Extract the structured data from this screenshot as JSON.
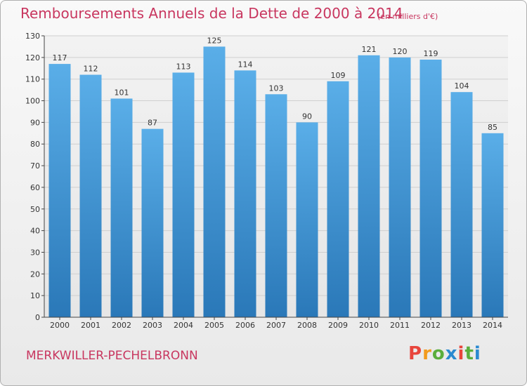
{
  "header": {
    "title": "Remboursements Annuels de la Dette de 2000 à 2014",
    "unit": "(en milliers d'€)"
  },
  "footer": {
    "commune": "MERKWILLER-PECHELBRONN",
    "brand": "Proxiti"
  },
  "colors": {
    "accent": "#c8365f",
    "bar_top": "#5aaee8",
    "bar_bottom": "#2a78b8",
    "brand_letters": [
      "#e8453c",
      "#f29b1d",
      "#5aae3c",
      "#2a8ad0",
      "#e8453c",
      "#5aae3c",
      "#2a8ad0"
    ]
  },
  "chart_data": {
    "type": "bar",
    "title": "Remboursements Annuels de la Dette de 2000 à 2014",
    "ylabel": "",
    "xlabel": "",
    "ylim": [
      0,
      130
    ],
    "yticks": [
      0,
      10,
      20,
      30,
      40,
      50,
      60,
      70,
      80,
      90,
      100,
      110,
      120,
      130
    ],
    "grid": true,
    "categories": [
      "2000",
      "2001",
      "2002",
      "2003",
      "2004",
      "2005",
      "2006",
      "2007",
      "2008",
      "2009",
      "2010",
      "2011",
      "2012",
      "2013",
      "2014"
    ],
    "values": [
      117,
      112,
      101,
      87,
      113,
      125,
      114,
      103,
      90,
      109,
      121,
      120,
      119,
      104,
      85
    ]
  }
}
